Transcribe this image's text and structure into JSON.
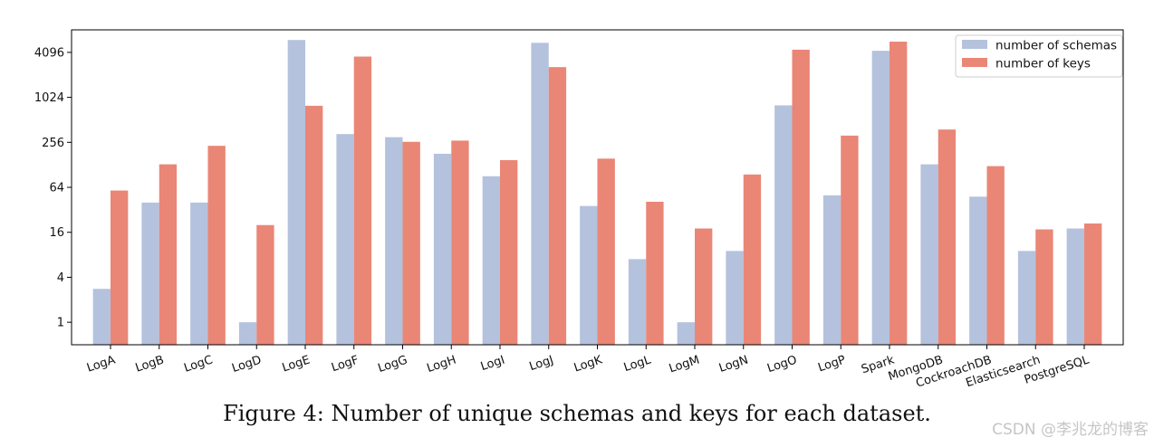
{
  "chart_data": {
    "type": "bar",
    "y_scale": "log2",
    "categories": [
      "LogA",
      "LogB",
      "LogC",
      "LogD",
      "LogE",
      "LogF",
      "LogG",
      "LogH",
      "LogI",
      "LogJ",
      "LogK",
      "LogL",
      "LogM",
      "LogN",
      "LogO",
      "LogP",
      "Spark",
      "MongoDB",
      "CockroachDB",
      "Elasticsearch",
      "PostgreSQL"
    ],
    "series": [
      {
        "name": "number of schemas",
        "color": "#b4c2dd",
        "values": [
          2.8,
          40,
          40,
          1,
          6000,
          330,
          300,
          180,
          90,
          5500,
          36,
          7,
          1,
          9,
          800,
          50,
          4300,
          130,
          48,
          9,
          18
        ]
      },
      {
        "name": "number of keys",
        "color": "#ea8676",
        "values": [
          58,
          130,
          230,
          20,
          790,
          3600,
          260,
          270,
          148,
          2600,
          155,
          41,
          18,
          95,
          4450,
          315,
          5700,
          380,
          123,
          17.5,
          21
        ]
      }
    ],
    "yticks": [
      1,
      4,
      16,
      64,
      256,
      1024,
      4096
    ],
    "ylim": [
      0.5,
      8200
    ],
    "title": "",
    "xlabel": "",
    "ylabel": "",
    "legend_position": "top-right",
    "grid": false
  },
  "caption": {
    "label": "Figure 4:",
    "text": "Number of unique schemas and keys for each dataset."
  },
  "watermark": "CSDN @李兆龙的博客"
}
